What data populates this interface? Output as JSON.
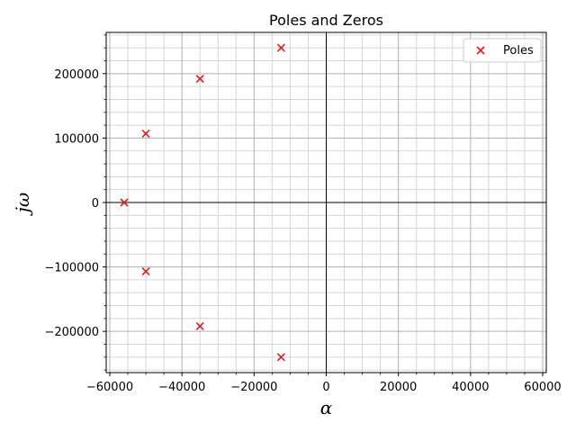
{
  "chart_data": {
    "type": "scatter",
    "title": "Poles and Zeros",
    "xlabel": "α",
    "ylabel": "jω",
    "xlim": [
      -61000,
      61000
    ],
    "ylim": [
      -264000,
      264000
    ],
    "xticks": [
      -60000,
      -40000,
      -20000,
      0,
      20000,
      40000,
      60000
    ],
    "xtick_labels": [
      "−60000",
      "−40000",
      "−20000",
      "0",
      "20000",
      "40000",
      "60000"
    ],
    "yticks": [
      -200000,
      -100000,
      0,
      100000,
      200000
    ],
    "ytick_labels": [
      "−200000",
      "−100000",
      "0",
      "100000",
      "200000"
    ],
    "grid": true,
    "minor_grid": true,
    "legend_position": "top-right",
    "series": [
      {
        "name": "Poles",
        "marker": "x",
        "color": "#e41a1c",
        "points": [
          {
            "x": -12500,
            "y": 240000
          },
          {
            "x": -35000,
            "y": 192000
          },
          {
            "x": -50000,
            "y": 107000
          },
          {
            "x": -56000,
            "y": 0
          },
          {
            "x": -50000,
            "y": -107000
          },
          {
            "x": -35000,
            "y": -192000
          },
          {
            "x": -12500,
            "y": -240000
          }
        ]
      }
    ]
  }
}
